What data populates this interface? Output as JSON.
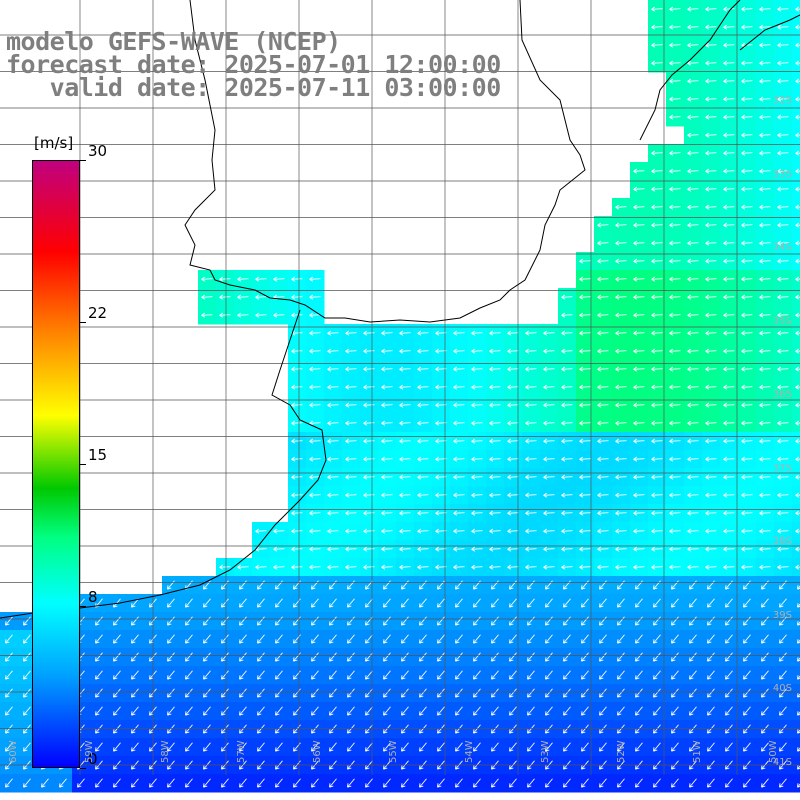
{
  "title": {
    "line1": "modelo GEFS-WAVE (NCEP)",
    "line2": "forecast date: 2025-07-01 12:00:00",
    "line3": "   valid date: 2025-07-11 03:00:00"
  },
  "colorbar": {
    "units": "[m/s]",
    "ticks": [
      {
        "value": 30,
        "label": "30"
      },
      {
        "value": 22,
        "label": "22"
      },
      {
        "value": 15,
        "label": "15"
      },
      {
        "value": 8,
        "label": "8"
      },
      {
        "value": 0,
        "label": "0"
      }
    ],
    "colors": [
      "#0000ff",
      "#00a0ff",
      "#00ffff",
      "#00ff80",
      "#00c800",
      "#ffff00",
      "#ff8000",
      "#ff0000",
      "#c00080"
    ]
  },
  "map": {
    "land_color": "#ffffff",
    "coast_color": "#000000",
    "grid_color": "#555555",
    "arrow_color": "#ffffff",
    "wind_direction": "from east-northeast, turning southwest-bound in the south",
    "lat_labels": [
      "32S",
      "33S",
      "34S",
      "35S",
      "36S",
      "37S",
      "38S",
      "39S",
      "40S",
      "41S"
    ],
    "lon_labels": [
      "60W",
      "59W",
      "58W",
      "57W",
      "56W",
      "55W",
      "54W",
      "53W",
      "52W",
      "51W",
      "50W"
    ]
  }
}
